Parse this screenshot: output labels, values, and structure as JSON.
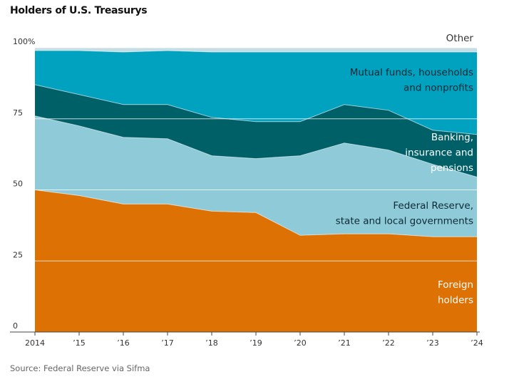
{
  "chart_data": {
    "type": "area",
    "title": "Holders of U.S. Treasurys",
    "source": "Source: Federal Reserve via Sifma",
    "x_tick_labels": [
      "2014",
      "’15",
      "’16",
      "’17",
      "’18",
      "’19",
      "’20",
      "’21",
      "’22",
      "’23",
      "’24"
    ],
    "x": [
      2014,
      2015,
      2016,
      2017,
      2018,
      2019,
      2020,
      2021,
      2022,
      2023,
      2024
    ],
    "ylim": [
      0,
      100
    ],
    "y_tick_labels": [
      "0",
      "25",
      "50",
      "75",
      "100%"
    ],
    "stacked": true,
    "series": [
      {
        "name": "Foreign holders",
        "label_lines": [
          "Foreign",
          "holders"
        ],
        "color": "#de7104",
        "values": [
          50,
          48,
          45,
          45,
          42.5,
          42,
          34,
          34.5,
          34.5,
          33.5,
          33.5
        ]
      },
      {
        "name": "Federal Reserve, state and local governments",
        "label_lines": [
          "Federal Reserve,",
          "state and local governments"
        ],
        "color": "#8fcad9",
        "values": [
          26,
          24.5,
          23.5,
          23,
          19.5,
          19,
          28,
          32,
          29.5,
          25.5,
          21
        ]
      },
      {
        "name": "Banking, insurance and pensions",
        "label_lines": [
          "Banking,",
          "insurance and",
          "pensions"
        ],
        "color": "#006068",
        "values": [
          11,
          11,
          11.5,
          12,
          13.5,
          13,
          12,
          13.5,
          14,
          12,
          15
        ]
      },
      {
        "name": "Mutual funds, households and nonprofits",
        "label_lines": [
          "Mutual funds, households",
          "and nonprofits"
        ],
        "color": "#00a2c0",
        "values": [
          12,
          15.5,
          18.5,
          19,
          23,
          24.5,
          24.5,
          18.5,
          20.5,
          27.5,
          29
        ]
      },
      {
        "name": "Other",
        "label_lines": [
          "Other"
        ],
        "color": "#c6dde4",
        "values": [
          1,
          1,
          1.5,
          1,
          1.5,
          1.5,
          1.5,
          1.5,
          1.5,
          1.5,
          1.5
        ]
      }
    ]
  }
}
